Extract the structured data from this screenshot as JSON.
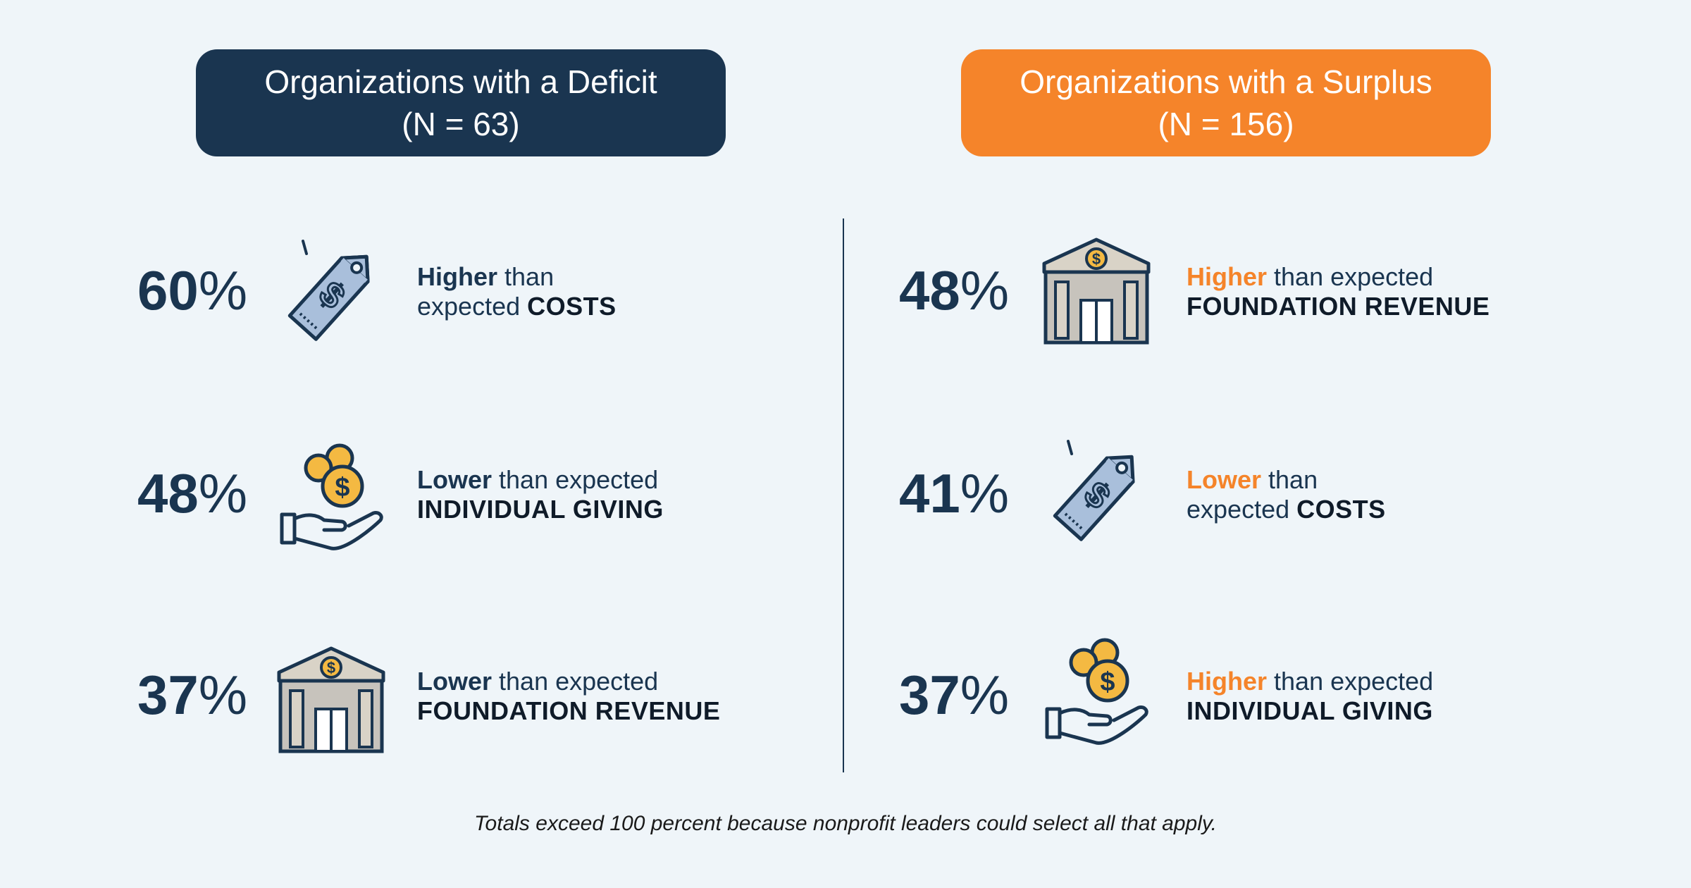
{
  "headers": {
    "deficit": {
      "title": "Organizations with a Deficit",
      "n": "(N = 63)"
    },
    "surplus": {
      "title": "Organizations with a Surplus",
      "n": "(N = 156)"
    }
  },
  "colors": {
    "navy": "#1a3550",
    "orange": "#f5842a",
    "background": "#eff5f9"
  },
  "left": [
    {
      "num": "60",
      "pct": "%",
      "icon": "price-tag-icon",
      "kw": "Higher",
      "rest1": " than",
      "rest2": "expected ",
      "cap": "COSTS"
    },
    {
      "num": "48",
      "pct": "%",
      "icon": "hand-coins-icon",
      "kw": "Lower",
      "rest1": " than expected",
      "rest2": "",
      "cap": "INDIVIDUAL GIVING"
    },
    {
      "num": "37",
      "pct": "%",
      "icon": "bank-icon",
      "kw": "Lower",
      "rest1": " than expected",
      "rest2": "",
      "cap": "FOUNDATION REVENUE"
    }
  ],
  "right": [
    {
      "num": "48",
      "pct": "%",
      "icon": "bank-icon",
      "kw": "Higher",
      "rest1": " than expected",
      "rest2": "",
      "cap": "FOUNDATION REVENUE"
    },
    {
      "num": "41",
      "pct": "%",
      "icon": "price-tag-icon",
      "kw": "Lower",
      "rest1": " than",
      "rest2": "expected ",
      "cap": "COSTS"
    },
    {
      "num": "37",
      "pct": "%",
      "icon": "hand-coins-icon",
      "kw": "Higher",
      "rest1": " than expected",
      "rest2": "",
      "cap": "INDIVIDUAL GIVING"
    }
  ],
  "note": "Totals exceed 100 percent because nonprofit leaders could select all that apply."
}
